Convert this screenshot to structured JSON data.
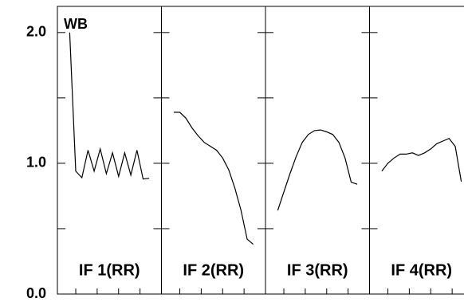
{
  "chart_data": {
    "type": "line",
    "annotation": "WB",
    "color": "#000000",
    "x": [
      1,
      2,
      3,
      4,
      5,
      6,
      7,
      8,
      9,
      10,
      11,
      12,
      13,
      14
    ],
    "xlim": [
      -1,
      16
    ],
    "xticks": [
      2,
      5.5,
      9,
      12.5
    ],
    "ylim": [
      0,
      2.2
    ],
    "yticks": [
      {
        "value": 0,
        "label": "0.0"
      },
      {
        "value": 1,
        "label": "1.0"
      },
      {
        "value": 2,
        "label": "2.0"
      }
    ],
    "y_minor_ticks": [
      0.5,
      1.5
    ],
    "series": [
      {
        "name": "IF 1(RR)",
        "values": [
          2.0,
          0.94,
          0.89,
          1.1,
          0.94,
          1.11,
          0.92,
          1.08,
          0.9,
          1.08,
          0.91,
          1.1,
          0.88,
          0.885
        ]
      },
      {
        "name": "IF 2(RR)",
        "values": [
          1.39,
          1.39,
          1.345,
          1.27,
          1.21,
          1.16,
          1.13,
          1.1,
          1.04,
          0.95,
          0.81,
          0.64,
          0.42,
          0.38
        ]
      },
      {
        "name": "IF 3(RR)",
        "values": [
          0.64,
          0.78,
          0.92,
          1.05,
          1.16,
          1.22,
          1.25,
          1.255,
          1.24,
          1.22,
          1.16,
          1.04,
          0.855,
          0.84
        ]
      },
      {
        "name": "IF 4(RR)",
        "values": [
          0.94,
          1.0,
          1.04,
          1.07,
          1.07,
          1.08,
          1.06,
          1.08,
          1.11,
          1.15,
          1.17,
          1.19,
          1.13,
          0.86
        ]
      }
    ]
  }
}
